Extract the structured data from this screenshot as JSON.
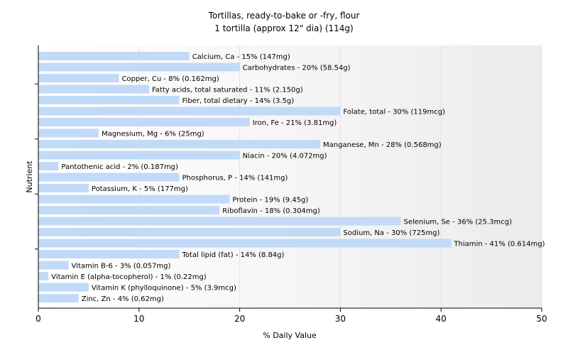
{
  "chart_data": {
    "type": "bar",
    "orientation": "horizontal",
    "title": "Tortillas, ready-to-bake or -fry, flour",
    "subtitle": "1 tortilla (approx 12\" dia) (114g)",
    "xlabel": "% Daily Value",
    "ylabel": "Nutrient",
    "xlim": [
      0,
      50
    ],
    "xticks": [
      0,
      10,
      20,
      30,
      40,
      50
    ],
    "grid": true,
    "bar_color": "#c2daf8",
    "categories": [
      "Calcium, Ca",
      "Carbohydrates",
      "Copper, Cu",
      "Fatty acids, total saturated",
      "Fiber, total dietary",
      "Folate, total",
      "Iron, Fe",
      "Magnesium, Mg",
      "Manganese, Mn",
      "Niacin",
      "Pantothenic acid",
      "Phosphorus, P",
      "Potassium, K",
      "Protein",
      "Riboflavin",
      "Selenium, Se",
      "Sodium, Na",
      "Thiamin",
      "Total lipid (fat)",
      "Vitamin B-6",
      "Vitamin E (alpha-tocopherol)",
      "Vitamin K (phylloquinone)",
      "Zinc, Zn"
    ],
    "values": [
      15,
      20,
      8,
      11,
      14,
      30,
      21,
      6,
      28,
      20,
      2,
      14,
      5,
      19,
      18,
      36,
      30,
      41,
      14,
      3,
      1,
      5,
      4
    ],
    "labels": [
      "Calcium, Ca - 15% (147mg)",
      "Carbohydrates - 20% (58.54g)",
      "Copper, Cu - 8% (0.162mg)",
      "Fatty acids, total saturated - 11% (2.150g)",
      "Fiber, total dietary - 14% (3.5g)",
      "Folate, total - 30% (119mcg)",
      "Iron, Fe - 21% (3.81mg)",
      "Magnesium, Mg - 6% (25mg)",
      "Manganese, Mn - 28% (0.568mg)",
      "Niacin - 20% (4.072mg)",
      "Pantothenic acid - 2% (0.187mg)",
      "Phosphorus, P - 14% (141mg)",
      "Potassium, K - 5% (177mg)",
      "Protein - 19% (9.45g)",
      "Riboflavin - 18% (0.304mg)",
      "Selenium, Se - 36% (25.3mcg)",
      "Sodium, Na - 30% (725mg)",
      "Thiamin - 41% (0.614mg)",
      "Total lipid (fat) - 14% (8.84g)",
      "Vitamin B-6 - 3% (0.057mg)",
      "Vitamin E (alpha-tocopherol) - 1% (0.22mg)",
      "Vitamin K (phylloquinone) - 5% (3.9mcg)",
      "Zinc, Zn - 4% (0.62mg)"
    ]
  }
}
